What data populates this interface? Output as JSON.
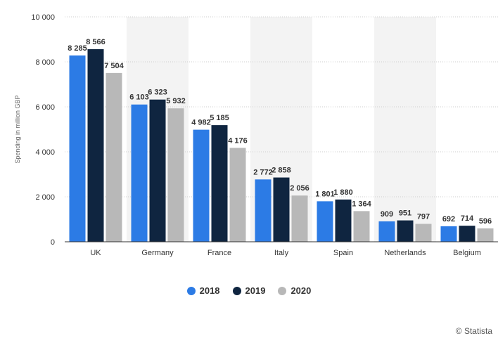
{
  "chart_data": {
    "type": "bar",
    "ylabel": "Spending in million GBP",
    "ylim": [
      0,
      10000
    ],
    "yticks": [
      0,
      2000,
      4000,
      6000,
      8000,
      10000
    ],
    "ytick_labels": [
      "0",
      "2 000",
      "4 000",
      "6 000",
      "8 000",
      "10 000"
    ],
    "categories": [
      "UK",
      "Germany",
      "France",
      "Italy",
      "Spain",
      "Netherlands",
      "Belgium"
    ],
    "series": [
      {
        "name": "2018",
        "color": "#2c7be5",
        "values": [
          8285,
          6103,
          4982,
          2772,
          1801,
          909,
          692
        ],
        "labels": [
          "8 285",
          "6 103",
          "4 982",
          "2 772",
          "1 801",
          "909",
          "692"
        ]
      },
      {
        "name": "2019",
        "color": "#0f2540",
        "values": [
          8566,
          6323,
          5185,
          2858,
          1880,
          951,
          714
        ],
        "labels": [
          "8 566",
          "6 323",
          "5 185",
          "2 858",
          "1 880",
          "951",
          "714"
        ]
      },
      {
        "name": "2020",
        "color": "#b8b8b8",
        "values": [
          7504,
          5932,
          4176,
          2056,
          1364,
          797,
          596
        ],
        "labels": [
          "7 504",
          "5 932",
          "4 176",
          "2 056",
          "1 364",
          "797",
          "596"
        ]
      }
    ],
    "grid": true,
    "legend_position": "bottom-center"
  },
  "credit": "© Statista"
}
